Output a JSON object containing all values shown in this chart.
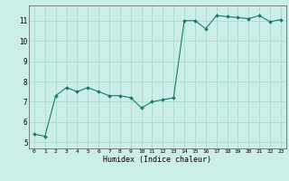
{
  "title": "",
  "xlabel": "Humidex (Indice chaleur)",
  "ylabel": "",
  "background_color": "#cceee8",
  "grid_color": "#aaddcc",
  "line_color": "#1a7a6e",
  "marker_color": "#1a7a6e",
  "x": [
    0,
    1,
    2,
    3,
    4,
    5,
    6,
    7,
    8,
    9,
    10,
    11,
    12,
    13,
    14,
    15,
    16,
    17,
    18,
    19,
    20,
    21,
    22,
    23
  ],
  "y": [
    5.4,
    5.3,
    7.3,
    7.7,
    7.5,
    7.7,
    7.5,
    7.3,
    7.3,
    7.2,
    6.7,
    7.0,
    7.1,
    7.2,
    11.0,
    11.0,
    10.6,
    11.25,
    11.2,
    11.15,
    11.1,
    11.25,
    10.95,
    11.05
  ],
  "ylim": [
    4.7,
    11.75
  ],
  "xlim": [
    -0.5,
    23.5
  ],
  "yticks": [
    5,
    6,
    7,
    8,
    9,
    10,
    11
  ],
  "xticks": [
    0,
    1,
    2,
    3,
    4,
    5,
    6,
    7,
    8,
    9,
    10,
    11,
    12,
    13,
    14,
    15,
    16,
    17,
    18,
    19,
    20,
    21,
    22,
    23
  ]
}
